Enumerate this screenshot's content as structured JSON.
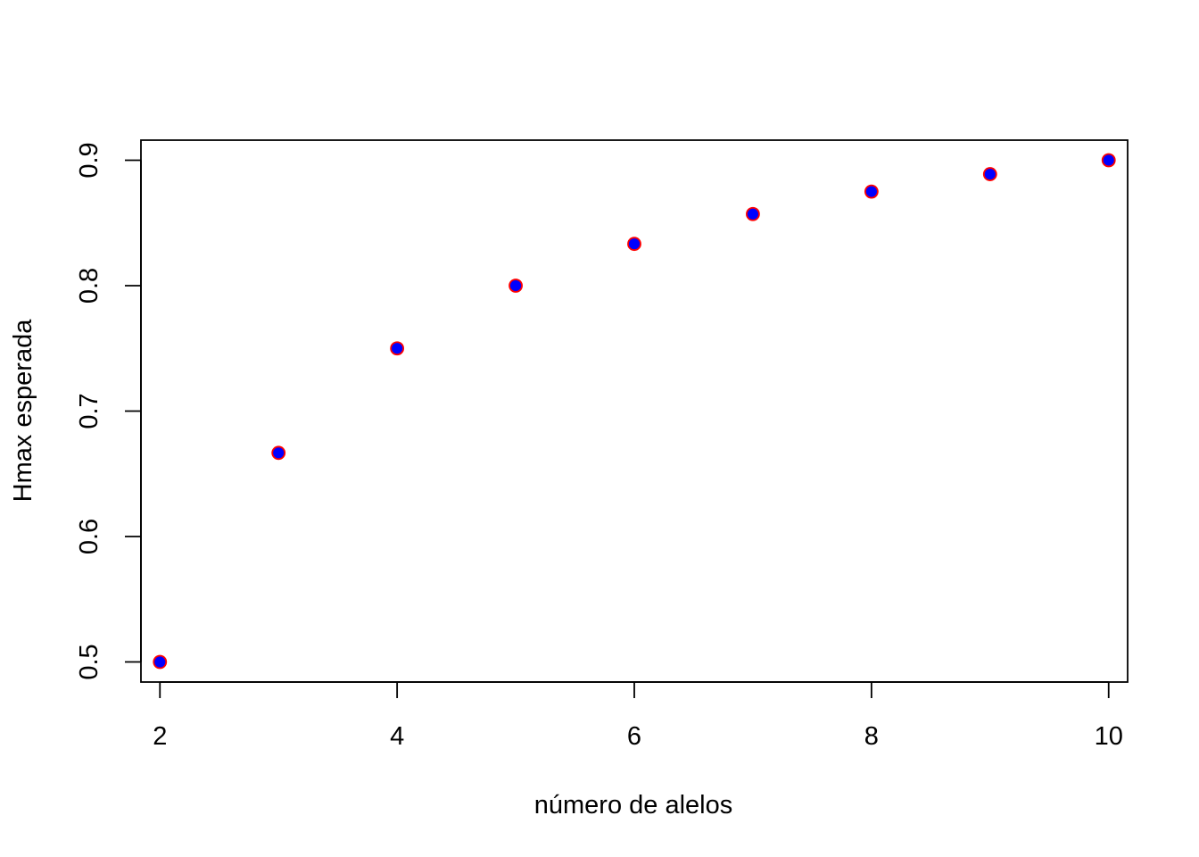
{
  "chart_data": {
    "type": "scatter",
    "title": "",
    "xlabel": "número de alelos",
    "ylabel": "Hmax esperada",
    "xlim": [
      1.84,
      10.16
    ],
    "ylim": [
      0.484,
      0.916
    ],
    "x_ticks": [
      2,
      4,
      6,
      8,
      10
    ],
    "x_tick_labels": [
      "2",
      "4",
      "6",
      "8",
      "10"
    ],
    "y_ticks": [
      0.5,
      0.6,
      0.7,
      0.8,
      0.9
    ],
    "y_tick_labels": [
      "0.5",
      "0.6",
      "0.7",
      "0.8",
      "0.9"
    ],
    "grid": false,
    "series": [
      {
        "x": [
          2,
          3,
          4,
          5,
          6,
          7,
          8,
          9,
          10
        ],
        "y": [
          0.5,
          0.6667,
          0.75,
          0.8,
          0.8333,
          0.8571,
          0.875,
          0.8889,
          0.9
        ],
        "fill_color": "#0000ff",
        "edge_color": "#ff0000"
      }
    ]
  }
}
